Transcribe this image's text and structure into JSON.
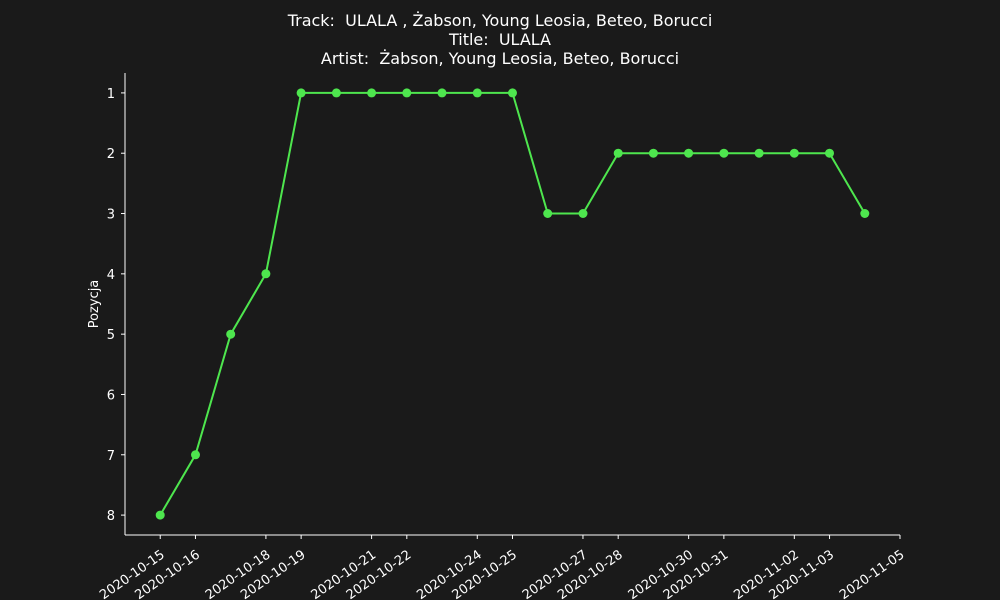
{
  "title": {
    "line1": "Track:  ULALA , Żabson, Young Leosia, Beteo, Borucci",
    "line2": "Title:  ULALA",
    "line3": "Artist:  Żabson, Young Leosia, Beteo, Borucci"
  },
  "colors": {
    "background": "#1a1a1a",
    "series": "#4ee64e",
    "axis": "#ffffff",
    "text": "#ffffff"
  },
  "chart_data": {
    "type": "line",
    "title": "Track:  ULALA , Żabson, Young Leosia, Beteo, Borucci\nTitle:  ULALA\nArtist:  Żabson, Young Leosia, Beteo, Borucci",
    "xlabel": "",
    "ylabel": "Pozycja",
    "y_inverted": true,
    "ylim": [
      8.33,
      0.67
    ],
    "xlim": [
      "2020-10-14",
      "2020-11-05"
    ],
    "yticks": [
      1,
      2,
      3,
      4,
      5,
      6,
      7,
      8
    ],
    "xticks": [
      "2020-10-15",
      "2020-10-16",
      "2020-10-18",
      "2020-10-19",
      "2020-10-21",
      "2020-10-22",
      "2020-10-24",
      "2020-10-25",
      "2020-10-27",
      "2020-10-28",
      "2020-10-30",
      "2020-10-31",
      "2020-11-02",
      "2020-11-03",
      "2020-11-05"
    ],
    "grid": false,
    "series": [
      {
        "x": [
          "2020-10-15",
          "2020-10-16",
          "2020-10-17",
          "2020-10-18",
          "2020-10-19",
          "2020-10-20",
          "2020-10-21",
          "2020-10-22",
          "2020-10-23",
          "2020-10-24",
          "2020-10-25",
          "2020-10-26",
          "2020-10-27",
          "2020-10-28",
          "2020-10-29",
          "2020-10-30",
          "2020-10-31",
          "2020-11-01",
          "2020-11-02",
          "2020-11-03",
          "2020-11-04"
        ],
        "y": [
          8,
          7,
          5,
          4,
          1,
          1,
          1,
          1,
          1,
          1,
          1,
          3,
          3,
          2,
          2,
          2,
          2,
          2,
          2,
          2,
          3
        ]
      }
    ]
  }
}
